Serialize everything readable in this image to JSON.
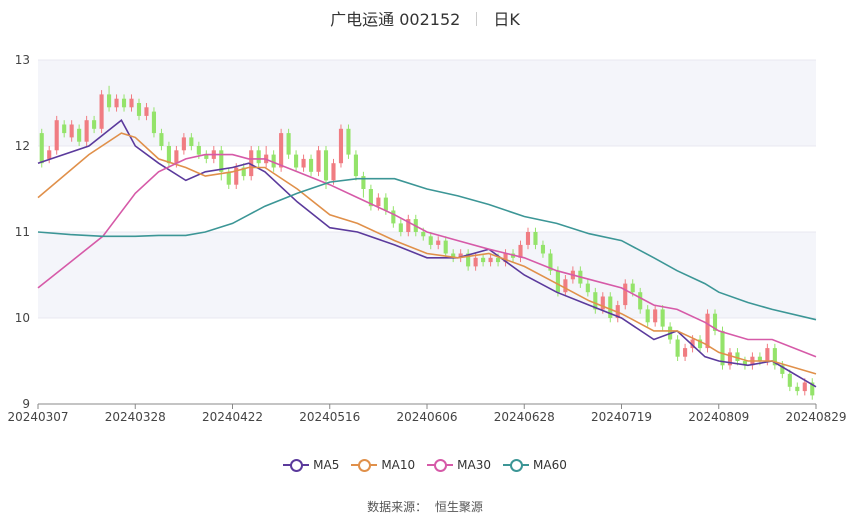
{
  "header": {
    "title": "广电运通 002152",
    "period": "日K"
  },
  "source": {
    "label": "数据来源：",
    "value": "恒生聚源"
  },
  "colors": {
    "up": "#f07c82",
    "down": "#94e36a",
    "MA5": "#5b3a9c",
    "MA10": "#e0904a",
    "MA30": "#d65aa8",
    "MA60": "#3c9696",
    "grid": "#e8e8f0",
    "band": "#f4f5fa"
  },
  "chart_data": {
    "type": "candlestick",
    "title": "广电运通 002152 日K",
    "ylim": [
      9,
      13
    ],
    "yticks": [
      "13",
      "12",
      "11",
      "10",
      "9"
    ],
    "xticks": [
      "20240307",
      "20240328",
      "20240422",
      "20240516",
      "20240606",
      "20240628",
      "20240719",
      "20240809",
      "20240829"
    ],
    "legend": [
      "MA5",
      "MA10",
      "MA30",
      "MA60"
    ],
    "legend_position": "bottom",
    "grid": true,
    "series": [
      {
        "name": "MA5",
        "points": [
          [
            "20240307",
            11.8
          ],
          [
            "20240318",
            12.0
          ],
          [
            "20240325",
            12.3
          ],
          [
            "20240328",
            12.0
          ],
          [
            "20240403",
            11.8
          ],
          [
            "20240410",
            11.6
          ],
          [
            "20240415",
            11.7
          ],
          [
            "20240422",
            11.75
          ],
          [
            "20240426",
            11.8
          ],
          [
            "20240430",
            11.7
          ],
          [
            "20240508",
            11.35
          ],
          [
            "20240516",
            11.05
          ],
          [
            "20240522",
            11.0
          ],
          [
            "20240530",
            10.85
          ],
          [
            "20240606",
            10.7
          ],
          [
            "20240613",
            10.7
          ],
          [
            "20240620",
            10.8
          ],
          [
            "20240628",
            10.5
          ],
          [
            "20240705",
            10.3
          ],
          [
            "20240712",
            10.15
          ],
          [
            "20240719",
            10.0
          ],
          [
            "20240726",
            9.75
          ],
          [
            "20240731",
            9.85
          ],
          [
            "20240806",
            9.55
          ],
          [
            "20240809",
            9.5
          ],
          [
            "20240815",
            9.45
          ],
          [
            "20240820",
            9.5
          ],
          [
            "20240829",
            9.2
          ]
        ]
      },
      {
        "name": "MA10",
        "points": [
          [
            "20240307",
            11.4
          ],
          [
            "20240318",
            11.9
          ],
          [
            "20240325",
            12.15
          ],
          [
            "20240328",
            12.1
          ],
          [
            "20240403",
            11.85
          ],
          [
            "20240410",
            11.75
          ],
          [
            "20240415",
            11.65
          ],
          [
            "20240422",
            11.7
          ],
          [
            "20240426",
            11.75
          ],
          [
            "20240430",
            11.75
          ],
          [
            "20240508",
            11.5
          ],
          [
            "20240516",
            11.2
          ],
          [
            "20240522",
            11.1
          ],
          [
            "20240530",
            10.9
          ],
          [
            "20240606",
            10.75
          ],
          [
            "20240613",
            10.7
          ],
          [
            "20240620",
            10.75
          ],
          [
            "20240628",
            10.6
          ],
          [
            "20240705",
            10.4
          ],
          [
            "20240712",
            10.2
          ],
          [
            "20240719",
            10.05
          ],
          [
            "20240726",
            9.85
          ],
          [
            "20240731",
            9.85
          ],
          [
            "20240806",
            9.7
          ],
          [
            "20240809",
            9.6
          ],
          [
            "20240815",
            9.5
          ],
          [
            "20240820",
            9.5
          ],
          [
            "20240829",
            9.35
          ]
        ]
      },
      {
        "name": "MA30",
        "points": [
          [
            "20240307",
            10.35
          ],
          [
            "20240314",
            10.65
          ],
          [
            "20240321",
            10.95
          ],
          [
            "20240328",
            11.45
          ],
          [
            "20240403",
            11.7
          ],
          [
            "20240410",
            11.85
          ],
          [
            "20240415",
            11.9
          ],
          [
            "20240422",
            11.9
          ],
          [
            "20240426",
            11.85
          ],
          [
            "20240430",
            11.85
          ],
          [
            "20240508",
            11.7
          ],
          [
            "20240516",
            11.55
          ],
          [
            "20240522",
            11.4
          ],
          [
            "20240530",
            11.2
          ],
          [
            "20240606",
            11.0
          ],
          [
            "20240613",
            10.9
          ],
          [
            "20240620",
            10.8
          ],
          [
            "20240628",
            10.7
          ],
          [
            "20240705",
            10.55
          ],
          [
            "20240712",
            10.45
          ],
          [
            "20240719",
            10.35
          ],
          [
            "20240726",
            10.15
          ],
          [
            "20240731",
            10.1
          ],
          [
            "20240806",
            9.95
          ],
          [
            "20240809",
            9.85
          ],
          [
            "20240815",
            9.75
          ],
          [
            "20240820",
            9.75
          ],
          [
            "20240829",
            9.55
          ]
        ]
      },
      {
        "name": "MA60",
        "points": [
          [
            "20240307",
            11.0
          ],
          [
            "20240314",
            10.97
          ],
          [
            "20240321",
            10.95
          ],
          [
            "20240328",
            10.95
          ],
          [
            "20240403",
            10.96
          ],
          [
            "20240410",
            10.96
          ],
          [
            "20240415",
            11.0
          ],
          [
            "20240422",
            11.1
          ],
          [
            "20240426",
            11.2
          ],
          [
            "20240430",
            11.3
          ],
          [
            "20240508",
            11.45
          ],
          [
            "20240516",
            11.58
          ],
          [
            "20240522",
            11.62
          ],
          [
            "20240530",
            11.62
          ],
          [
            "20240606",
            11.5
          ],
          [
            "20240613",
            11.42
          ],
          [
            "20240620",
            11.32
          ],
          [
            "20240628",
            11.18
          ],
          [
            "20240705",
            11.1
          ],
          [
            "20240712",
            10.98
          ],
          [
            "20240719",
            10.9
          ],
          [
            "20240726",
            10.7
          ],
          [
            "20240731",
            10.55
          ],
          [
            "20240806",
            10.4
          ],
          [
            "20240809",
            10.3
          ],
          [
            "20240815",
            10.18
          ],
          [
            "20240820",
            10.1
          ],
          [
            "20240829",
            9.98
          ]
        ]
      }
    ],
    "candles": [
      [
        12.15,
        11.8,
        12.2,
        11.75
      ],
      [
        11.85,
        11.95,
        12.0,
        11.8
      ],
      [
        11.95,
        12.3,
        12.35,
        11.9
      ],
      [
        12.25,
        12.15,
        12.3,
        12.1
      ],
      [
        12.1,
        12.25,
        12.3,
        12.05
      ],
      [
        12.2,
        12.05,
        12.25,
        12.0
      ],
      [
        12.05,
        12.3,
        12.35,
        12.0
      ],
      [
        12.3,
        12.2,
        12.35,
        12.15
      ],
      [
        12.2,
        12.6,
        12.65,
        12.15
      ],
      [
        12.6,
        12.45,
        12.7,
        12.4
      ],
      [
        12.45,
        12.55,
        12.6,
        12.4
      ],
      [
        12.55,
        12.45,
        12.6,
        12.4
      ],
      [
        12.45,
        12.55,
        12.6,
        12.4
      ],
      [
        12.5,
        12.35,
        12.55,
        12.3
      ],
      [
        12.35,
        12.45,
        12.5,
        12.3
      ],
      [
        12.4,
        12.15,
        12.45,
        12.1
      ],
      [
        12.15,
        12.0,
        12.2,
        11.95
      ],
      [
        12.0,
        11.8,
        12.05,
        11.75
      ],
      [
        11.8,
        11.95,
        12.0,
        11.75
      ],
      [
        11.95,
        12.1,
        12.15,
        11.9
      ],
      [
        12.1,
        12.0,
        12.15,
        11.95
      ],
      [
        12.0,
        11.9,
        12.05,
        11.85
      ],
      [
        11.9,
        11.85,
        11.95,
        11.8
      ],
      [
        11.85,
        11.95,
        12.0,
        11.8
      ],
      [
        11.95,
        11.7,
        12.0,
        11.6
      ],
      [
        11.7,
        11.55,
        11.75,
        11.5
      ],
      [
        11.55,
        11.75,
        11.8,
        11.5
      ],
      [
        11.75,
        11.65,
        11.8,
        11.6
      ],
      [
        11.65,
        11.95,
        12.0,
        11.6
      ],
      [
        11.95,
        11.8,
        12.0,
        11.75
      ],
      [
        11.8,
        11.9,
        12.0,
        11.75
      ],
      [
        11.9,
        11.75,
        11.95,
        11.7
      ],
      [
        11.75,
        12.15,
        12.2,
        11.7
      ],
      [
        12.15,
        11.9,
        12.2,
        11.85
      ],
      [
        11.9,
        11.75,
        11.95,
        11.7
      ],
      [
        11.75,
        11.85,
        11.9,
        11.7
      ],
      [
        11.85,
        11.7,
        11.9,
        11.65
      ],
      [
        11.7,
        11.95,
        12.0,
        11.65
      ],
      [
        11.95,
        11.6,
        12.0,
        11.5
      ],
      [
        11.6,
        11.8,
        11.85,
        11.55
      ],
      [
        11.8,
        12.2,
        12.25,
        11.75
      ],
      [
        12.2,
        11.9,
        12.25,
        11.85
      ],
      [
        11.9,
        11.65,
        11.95,
        11.6
      ],
      [
        11.65,
        11.5,
        11.7,
        11.4
      ],
      [
        11.5,
        11.3,
        11.55,
        11.25
      ],
      [
        11.3,
        11.4,
        11.45,
        11.25
      ],
      [
        11.4,
        11.25,
        11.45,
        11.2
      ],
      [
        11.25,
        11.1,
        11.3,
        11.05
      ],
      [
        11.1,
        11.0,
        11.15,
        10.95
      ],
      [
        11.0,
        11.15,
        11.2,
        10.95
      ],
      [
        11.15,
        11.0,
        11.2,
        10.95
      ],
      [
        11.0,
        10.95,
        11.05,
        10.9
      ],
      [
        10.95,
        10.85,
        11.0,
        10.8
      ],
      [
        10.85,
        10.9,
        10.95,
        10.8
      ],
      [
        10.9,
        10.75,
        10.95,
        10.7
      ],
      [
        10.75,
        10.7,
        10.8,
        10.65
      ],
      [
        10.7,
        10.75,
        10.8,
        10.65
      ],
      [
        10.75,
        10.6,
        10.8,
        10.55
      ],
      [
        10.6,
        10.7,
        10.75,
        10.55
      ],
      [
        10.7,
        10.65,
        10.75,
        10.6
      ],
      [
        10.65,
        10.7,
        10.75,
        10.6
      ],
      [
        10.7,
        10.65,
        10.75,
        10.6
      ],
      [
        10.65,
        10.75,
        10.8,
        10.6
      ],
      [
        10.75,
        10.7,
        10.8,
        10.65
      ],
      [
        10.7,
        10.85,
        10.9,
        10.65
      ],
      [
        10.85,
        11.0,
        11.05,
        10.8
      ],
      [
        11.0,
        10.85,
        11.05,
        10.8
      ],
      [
        10.85,
        10.75,
        10.9,
        10.7
      ],
      [
        10.75,
        10.55,
        10.8,
        10.5
      ],
      [
        10.55,
        10.3,
        10.6,
        10.25
      ],
      [
        10.3,
        10.45,
        10.5,
        10.25
      ],
      [
        10.45,
        10.55,
        10.6,
        10.4
      ],
      [
        10.55,
        10.4,
        10.6,
        10.35
      ],
      [
        10.4,
        10.3,
        10.45,
        10.25
      ],
      [
        10.3,
        10.1,
        10.35,
        10.05
      ],
      [
        10.1,
        10.25,
        10.3,
        10.05
      ],
      [
        10.25,
        10.0,
        10.3,
        9.95
      ],
      [
        10.0,
        10.15,
        10.2,
        9.95
      ],
      [
        10.15,
        10.4,
        10.45,
        10.1
      ],
      [
        10.4,
        10.3,
        10.45,
        10.25
      ],
      [
        10.3,
        10.1,
        10.35,
        10.05
      ],
      [
        10.1,
        9.95,
        10.15,
        9.9
      ],
      [
        9.95,
        10.1,
        10.15,
        9.9
      ],
      [
        10.1,
        9.9,
        10.15,
        9.85
      ],
      [
        9.9,
        9.75,
        9.95,
        9.7
      ],
      [
        9.75,
        9.55,
        9.8,
        9.5
      ],
      [
        9.55,
        9.65,
        9.7,
        9.5
      ],
      [
        9.65,
        9.75,
        9.8,
        9.6
      ],
      [
        9.75,
        9.65,
        9.8,
        9.6
      ],
      [
        9.65,
        10.05,
        10.1,
        9.6
      ],
      [
        10.05,
        9.85,
        10.1,
        9.8
      ],
      [
        9.85,
        9.45,
        9.9,
        9.4
      ],
      [
        9.45,
        9.6,
        9.65,
        9.4
      ],
      [
        9.6,
        9.5,
        9.65,
        9.45
      ],
      [
        9.5,
        9.45,
        9.55,
        9.4
      ],
      [
        9.45,
        9.55,
        9.6,
        9.4
      ],
      [
        9.55,
        9.5,
        9.6,
        9.45
      ],
      [
        9.5,
        9.65,
        9.7,
        9.45
      ],
      [
        9.65,
        9.45,
        9.7,
        9.4
      ],
      [
        9.45,
        9.35,
        9.5,
        9.3
      ],
      [
        9.35,
        9.2,
        9.4,
        9.15
      ],
      [
        9.2,
        9.15,
        9.25,
        9.1
      ],
      [
        9.15,
        9.25,
        9.3,
        9.1
      ],
      [
        9.25,
        9.1,
        9.3,
        9.05
      ]
    ]
  }
}
